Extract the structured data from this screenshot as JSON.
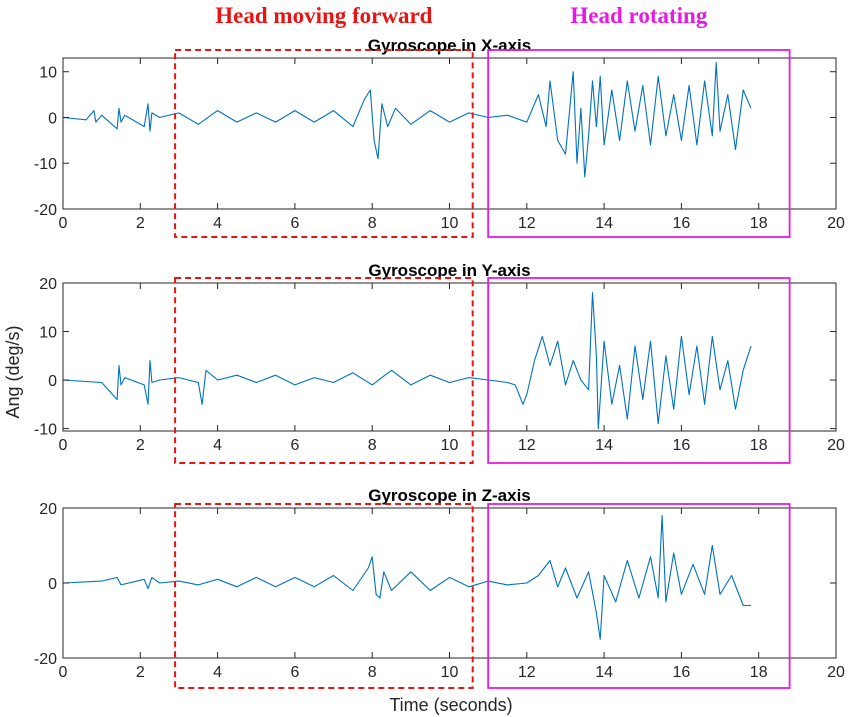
{
  "annotations": [
    {
      "label": "Head moving forward",
      "color": "#e81414",
      "style": "dashed",
      "x_range": [
        2.9,
        10.6
      ]
    },
    {
      "label": "Head rotating",
      "color": "#e619e6",
      "style": "solid",
      "x_range": [
        11.0,
        18.8
      ]
    }
  ],
  "labels": {
    "ylabel": "Ang (deg/s)",
    "xlabel": "Time (seconds)"
  },
  "chart_data": [
    {
      "type": "line",
      "title": "Gyroscope in X-axis",
      "xlim": [
        0,
        20
      ],
      "ylim": [
        -20,
        13
      ],
      "xticks": [
        0,
        2,
        4,
        6,
        8,
        10,
        12,
        14,
        16,
        18,
        20
      ],
      "yticks": [
        10,
        0,
        -10,
        -20
      ],
      "line_color": "#0072bd",
      "series": [
        {
          "x": [
            0,
            0.6,
            0.8,
            0.85,
            1.0,
            1.4,
            1.45,
            1.5,
            1.6,
            2.1,
            2.2,
            2.25,
            2.3,
            2.5,
            3.0,
            3.5,
            4.0,
            4.5,
            5.0,
            5.5,
            6.0,
            6.5,
            7.0,
            7.5,
            7.8,
            7.95,
            8.05,
            8.15,
            8.25,
            8.4,
            8.6,
            9.0,
            9.5,
            10.0,
            10.5,
            11.0,
            11.5,
            12.0,
            12.3,
            12.5,
            12.6,
            12.8,
            13.0,
            13.2,
            13.3,
            13.4,
            13.5,
            13.6,
            13.7,
            13.8,
            13.9,
            14.0,
            14.2,
            14.4,
            14.6,
            14.8,
            15.0,
            15.2,
            15.4,
            15.6,
            15.8,
            16.0,
            16.2,
            16.4,
            16.6,
            16.8,
            16.9,
            17.0,
            17.2,
            17.4,
            17.6,
            17.8
          ],
          "y": [
            0,
            -0.5,
            1.5,
            -1,
            0.5,
            -2.5,
            2,
            -1,
            0.5,
            -2,
            3,
            -3,
            1,
            0,
            1,
            -1.5,
            1.5,
            -1,
            1,
            -1,
            1.5,
            -1,
            1.5,
            -2,
            4,
            6,
            -5,
            -9,
            3,
            -2,
            2,
            -1.5,
            1.5,
            -1,
            1,
            0,
            0.5,
            -1,
            5,
            -2,
            8,
            -5,
            -8,
            10,
            -10,
            2,
            -13,
            -4,
            8,
            -2,
            9,
            -6,
            6,
            -5,
            8,
            -3,
            7,
            -6,
            9,
            -4,
            5,
            -5,
            7,
            -6,
            8,
            -4,
            12,
            -3,
            5,
            -7,
            6,
            2
          ]
        }
      ]
    },
    {
      "type": "line",
      "title": "Gyroscope in Y-axis",
      "xlim": [
        0,
        20
      ],
      "ylim": [
        -10.5,
        20
      ],
      "xticks": [
        0,
        2,
        4,
        6,
        8,
        10,
        12,
        14,
        16,
        18,
        20
      ],
      "yticks": [
        20,
        10,
        0,
        -10
      ],
      "line_color": "#0072bd",
      "series": [
        {
          "x": [
            0,
            1.0,
            1.4,
            1.45,
            1.5,
            1.6,
            2.1,
            2.2,
            2.25,
            2.3,
            2.5,
            3.0,
            3.5,
            3.6,
            3.7,
            4.0,
            4.5,
            5.0,
            5.5,
            6.0,
            6.5,
            7.0,
            7.5,
            8.0,
            8.5,
            9.0,
            9.5,
            10.0,
            10.5,
            11.0,
            11.5,
            11.7,
            11.8,
            11.9,
            12.0,
            12.2,
            12.4,
            12.6,
            12.8,
            13.0,
            13.2,
            13.4,
            13.6,
            13.7,
            13.8,
            13.85,
            13.9,
            14.0,
            14.2,
            14.4,
            14.6,
            14.8,
            15.0,
            15.2,
            15.4,
            15.6,
            15.8,
            16.0,
            16.2,
            16.4,
            16.6,
            16.8,
            17.0,
            17.2,
            17.4,
            17.6,
            17.8
          ],
          "y": [
            0,
            -0.5,
            -4,
            3,
            -1,
            0.5,
            -1,
            -5,
            4,
            -0.5,
            0,
            0.5,
            -0.5,
            -5,
            2,
            0,
            1,
            -0.5,
            1,
            -1,
            0.5,
            -0.5,
            1.5,
            -1,
            2,
            -1,
            1,
            -0.5,
            0.5,
            0,
            -0.5,
            -1,
            -3,
            -5,
            -3,
            4,
            9,
            3,
            8,
            -1,
            4,
            0,
            -2,
            18,
            5,
            -10,
            -4,
            8,
            -5,
            3,
            -8,
            7,
            -4,
            8,
            -9,
            5,
            -6,
            9,
            -3,
            7,
            -5,
            9,
            -2,
            4,
            -6,
            2,
            7
          ]
        }
      ]
    },
    {
      "type": "line",
      "title": "Gyroscope in Z-axis",
      "xlim": [
        0,
        20
      ],
      "ylim": [
        -20,
        20
      ],
      "xticks": [
        0,
        2,
        4,
        6,
        8,
        10,
        12,
        14,
        16,
        18,
        20
      ],
      "yticks": [
        20,
        0,
        -20
      ],
      "line_color": "#0072bd",
      "series": [
        {
          "x": [
            0,
            1.0,
            1.4,
            1.5,
            2.1,
            2.2,
            2.3,
            2.5,
            3.0,
            3.5,
            4.0,
            4.5,
            5.0,
            5.5,
            6.0,
            6.5,
            7.0,
            7.5,
            7.9,
            8.0,
            8.1,
            8.2,
            8.3,
            8.5,
            9.0,
            9.5,
            10.0,
            10.5,
            11.0,
            11.5,
            12.0,
            12.3,
            12.6,
            12.8,
            13.0,
            13.3,
            13.6,
            13.8,
            13.9,
            14.0,
            14.3,
            14.6,
            14.9,
            15.2,
            15.4,
            15.5,
            15.6,
            15.8,
            16.0,
            16.3,
            16.6,
            16.8,
            17.0,
            17.3,
            17.6,
            17.8
          ],
          "y": [
            0,
            0.5,
            1.5,
            -0.5,
            1,
            -1.5,
            1.5,
            0,
            0.5,
            -0.5,
            1,
            -1,
            1.5,
            -1,
            1.5,
            -1,
            2,
            -2,
            4,
            7,
            -3,
            -4,
            3,
            -2,
            3,
            -2,
            1.5,
            -1,
            0.5,
            -0.5,
            0,
            2,
            6,
            -1,
            4,
            -4,
            3,
            -8,
            -15,
            2,
            -5,
            6,
            -4,
            7,
            -4,
            18,
            -5,
            8,
            -3,
            5,
            -3,
            10,
            -3,
            2,
            -6,
            -6
          ]
        }
      ]
    }
  ]
}
